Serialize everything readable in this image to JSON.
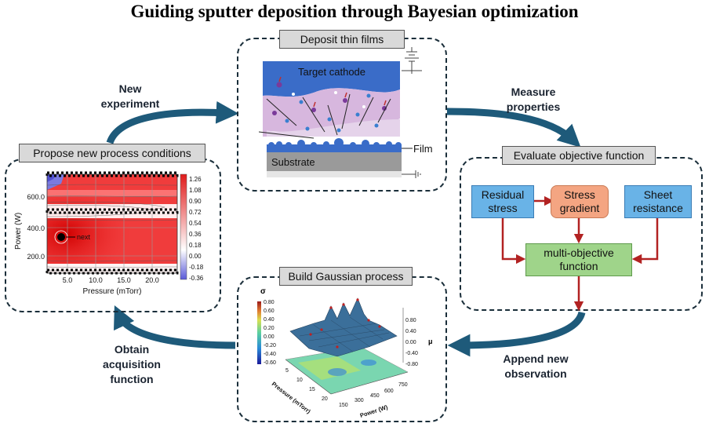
{
  "title": "Guiding sputter deposition through Bayesian optimization",
  "panels": {
    "deposit": "Deposit thin films",
    "evaluate": "Evaluate objective function",
    "gaussian": "Build Gaussian process",
    "propose": "Propose new process conditions"
  },
  "flow": {
    "new_experiment": [
      "New",
      "experiment"
    ],
    "measure": [
      "Measure",
      "properties"
    ],
    "append": [
      "Append new",
      "observation"
    ],
    "obtain": [
      "Obtain",
      "acquisition",
      "function"
    ]
  },
  "sputter": {
    "target": "Target cathode",
    "film": "Film",
    "substrate": "Substrate"
  },
  "objective": {
    "residual": [
      "Residual",
      "stress"
    ],
    "gradient": [
      "Stress",
      "gradient"
    ],
    "sheet": [
      "Sheet",
      "resistance"
    ],
    "multi": [
      "multi-objective",
      "function"
    ]
  },
  "acq_plot": {
    "xlabel": "Pressure (mTorr)",
    "ylabel": "Power (W)",
    "xticks": [
      "5.0",
      "10.0",
      "15.0",
      "20.0"
    ],
    "yticks": [
      "600.0",
      "400.0",
      "200.0"
    ],
    "cbar_ticks": [
      "1.26",
      "1.08",
      "0.90",
      "0.72",
      "0.54",
      "0.36",
      "0.18",
      "0.00",
      "-0.18",
      "-0.36"
    ],
    "annotation": "next",
    "colors": {
      "high": "#e01a1a",
      "mid": "#ffffff",
      "low": "#5a5ad8"
    }
  },
  "gp_plot": {
    "sigma_label": "σ",
    "mu_label": "μ",
    "sigma_ticks": [
      "0.80",
      "0.60",
      "0.40",
      "0.20",
      "0.00",
      "-0.20",
      "-0.40",
      "-0.60"
    ],
    "mu_ticks": [
      "0.80",
      "0.40",
      "0.00",
      "-0.40",
      "-0.80"
    ],
    "pressure_label": "Pressure (mTorr)",
    "power_label": "Power (W)",
    "pressure_ticks": [
      "5",
      "10",
      "15",
      "20"
    ],
    "power_ticks": [
      "150",
      "300",
      "450",
      "600",
      "750"
    ]
  },
  "colors": {
    "arrow": "#1e5a7a",
    "red_arrow": "#b22222",
    "panel_border": "#1a2e3a"
  }
}
